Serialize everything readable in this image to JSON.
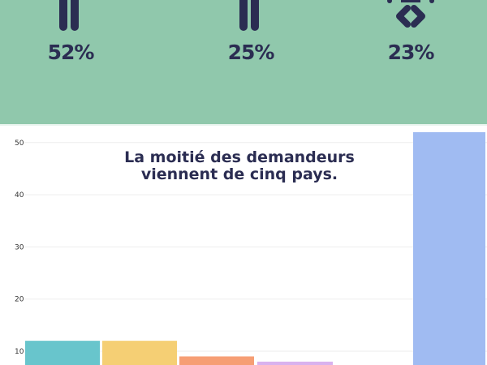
{
  "header": {
    "background": "#90c8ac",
    "stats": [
      {
        "icon": "person-legs-icon",
        "value": "52%"
      },
      {
        "icon": "person-legs-icon",
        "value": "25%"
      },
      {
        "icon": "family-icon",
        "value": "23%"
      }
    ]
  },
  "chart_data": {
    "type": "bar",
    "title": "La moitié des demandeurs viennent de cinq pays.",
    "title_lines": [
      "La moitié des demandeurs",
      "viennent de cinq pays."
    ],
    "values": [
      12,
      12,
      9,
      8,
      52
    ],
    "colors": [
      "#68c5cc",
      "#f5cf74",
      "#f69e74",
      "#d9b2ee",
      "#a0bbf2"
    ],
    "yticks": [
      10,
      20,
      30,
      40,
      50
    ],
    "ylim": [
      0,
      52
    ],
    "grid": true
  }
}
